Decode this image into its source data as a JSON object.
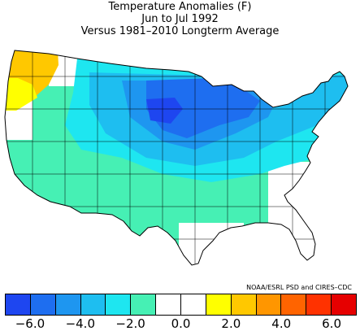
{
  "title": {
    "line1": "Temperature Anomalies (F)",
    "line2": "Jun to Jul 1992",
    "line3": "Versus 1981–2010 Longterm Average"
  },
  "credit": "NOAA/ESRL PSD and CIRES–CDC",
  "legend": {
    "colors": [
      "#1e46f0",
      "#1e6ef0",
      "#1e96f0",
      "#1ebef0",
      "#1ee6f0",
      "#46f0b4",
      "#ffffff",
      "#ffffff",
      "#ffff00",
      "#ffc800",
      "#ff9600",
      "#ff6400",
      "#ff3200",
      "#e60000"
    ],
    "ticks": [
      "−6.0",
      "−4.0",
      "−2.0",
      "0.0",
      "2.0",
      "4.0",
      "6.0"
    ],
    "tick_values": [
      -6,
      -4,
      -2,
      0,
      2,
      4,
      6
    ],
    "min": -7,
    "max": 7
  },
  "map_colors": {
    "lightcold": "#46f0b4",
    "cyan": "#1ee6f0",
    "sky": "#1ebef0",
    "mid": "#1e96f0",
    "blue": "#1e6ef0",
    "deep": "#1e46f0",
    "yellow": "#ffff00",
    "orange": "#ffc800",
    "neutral": "#ffffff"
  }
}
